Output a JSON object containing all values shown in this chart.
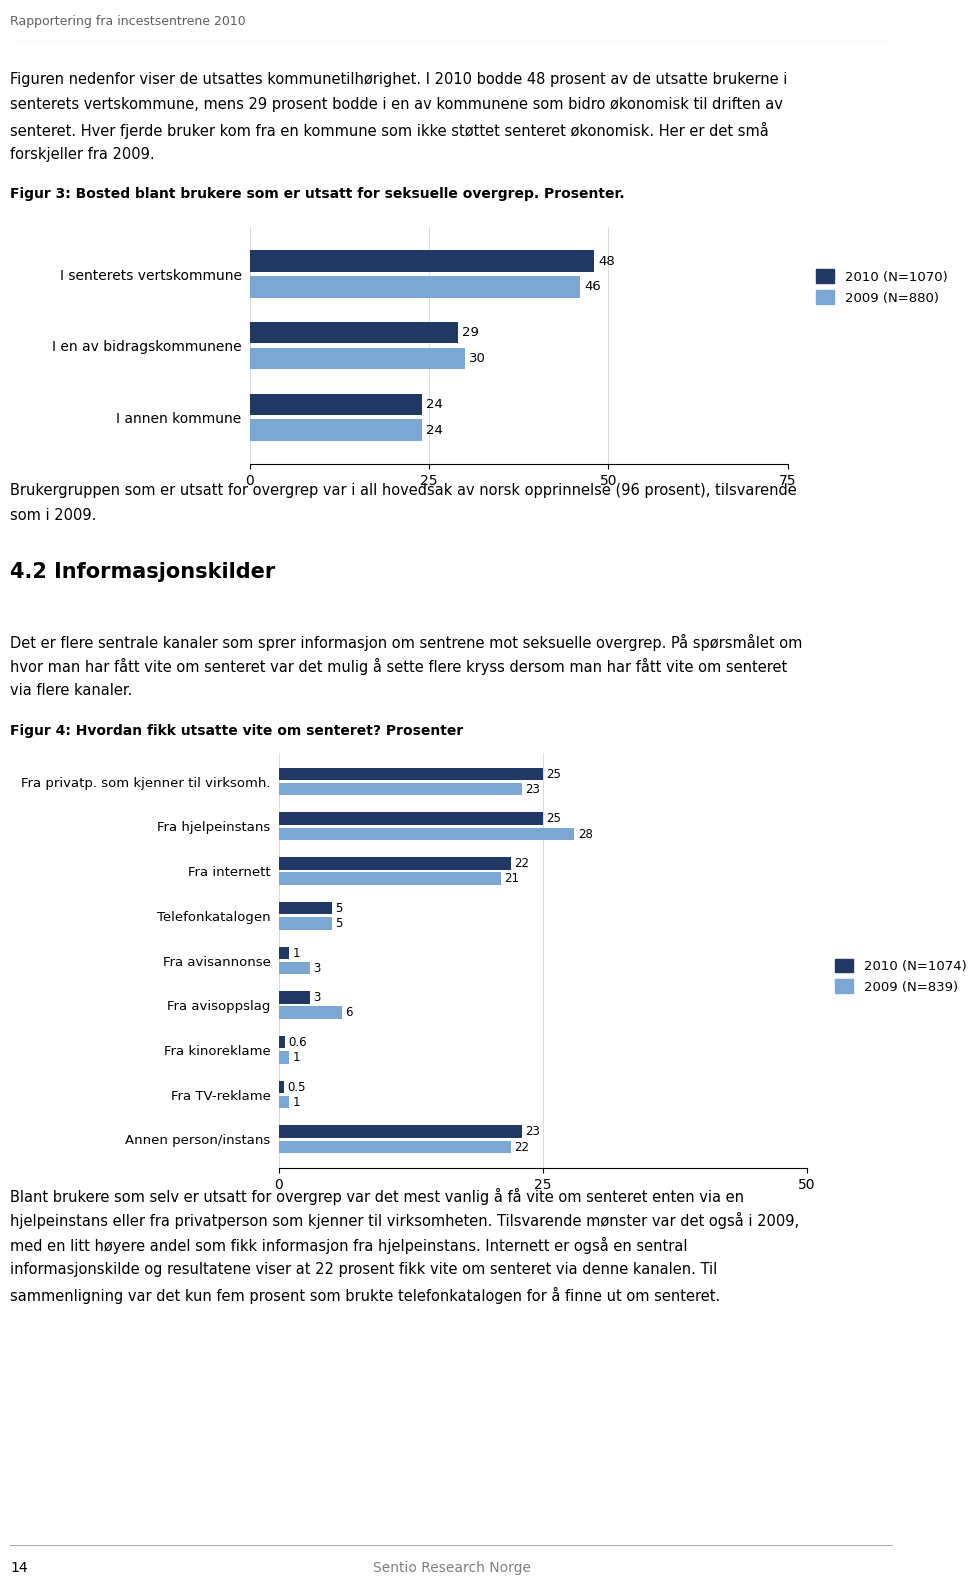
{
  "header": "Rapportering fra incestsentrene 2010",
  "para1_lines": [
    "Figuren nedenfor viser de utsattes kommunetilhørighet. I 2010 bodde 48 prosent av de utsatte brukerne i",
    "senterets vertskommune, mens 29 prosent bodde i en av kommunene som bidro økonomisk til driften av",
    "senteret. Hver fjerde bruker kom fra en kommune som ikke støttet senteret økonomisk. Her er det små",
    "forskjeller fra 2009."
  ],
  "fig3_title": "Figur 3: Bosted blant brukere som er utsatt for seksuelle overgrep. Prosenter.",
  "fig3_categories": [
    "I senterets vertskommune",
    "I en av bidragskommunene",
    "I annen kommune"
  ],
  "fig3_2010": [
    48,
    29,
    24
  ],
  "fig3_2009": [
    46,
    30,
    24
  ],
  "fig3_legend_2010": "2010 (N=1070)",
  "fig3_legend_2009": "2009 (N=880)",
  "fig3_xlim": [
    0,
    75
  ],
  "fig3_xticks": [
    0,
    25,
    50,
    75
  ],
  "para2_lines": [
    "Brukergruppen som er utsatt for overgrep var i all hovedsak av norsk opprinnelse (96 prosent), tilsvarende",
    "som i 2009."
  ],
  "section_title": "4.2 Informasjonskilder",
  "para3_lines": [
    "Det er flere sentrale kanaler som sprer informasjon om sentrene mot seksuelle overgrep. På spørsmålet om",
    "hvor man har fått vite om senteret var det mulig å sette flere kryss dersom man har fått vite om senteret",
    "via flere kanaler."
  ],
  "fig4_title": "Figur 4: Hvordan fikk utsatte vite om senteret? Prosenter",
  "fig4_categories": [
    "Fra privatp. som kjenner til virksomh.",
    "Fra hjelpeinstans",
    "Fra internett",
    "Telefonkatalogen",
    "Fra avisannonse",
    "Fra avisoppslag",
    "Fra kinoreklame",
    "Fra TV-reklame",
    "Annen person/instans"
  ],
  "fig4_2010": [
    25,
    25,
    22,
    5,
    1,
    3,
    0.6,
    0.5,
    23
  ],
  "fig4_2009": [
    23,
    28,
    21,
    5,
    3,
    6,
    1,
    1,
    22
  ],
  "fig4_legend_2010": "2010 (N=1074)",
  "fig4_legend_2009": "2009 (N=839)",
  "fig4_xlim": [
    0,
    50
  ],
  "fig4_xticks": [
    0,
    25,
    50
  ],
  "para4_lines": [
    "Blant brukere som selv er utsatt for overgrep var det mest vanlig å få vite om senteret enten via en",
    "hjelpeinstans eller fra privatperson som kjenner til virksomheten. Tilsvarende mønster var det også i 2009,",
    "med en litt høyere andel som fikk informasjon fra hjelpeinstans. Internett er også en sentral",
    "informasjonskilde og resultatene viser at 22 prosent fikk vite om senteret via denne kanalen. Til",
    "sammenligning var det kun fem prosent som brukte telefonkatalogen for å finne ut om senteret."
  ],
  "color_dark": "#1F3864",
  "color_light": "#7BA7D4",
  "background": "#FFFFFF"
}
